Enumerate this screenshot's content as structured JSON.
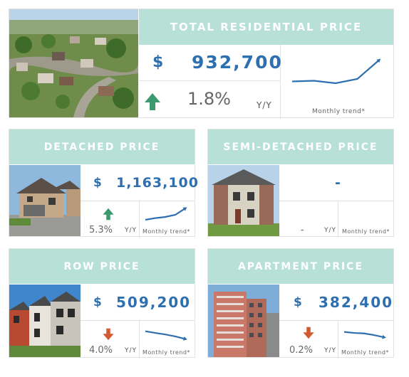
{
  "total": {
    "title": "TOTAL RESIDENTIAL PRICE",
    "currency": "$",
    "price": "932,700",
    "change": "1.8%",
    "direction": "up",
    "yy": "Y/Y",
    "trend_label": "Monthly trend*",
    "trend": [
      0.35,
      0.37,
      0.3,
      0.42,
      0.95
    ]
  },
  "detached": {
    "title": "DETACHED PRICE",
    "currency": "$",
    "price": "1,163,100",
    "change": "5.3%",
    "direction": "up",
    "yy": "Y/Y",
    "trend_label": "Monthly trend*",
    "trend": [
      0.1,
      0.22,
      0.3,
      0.45,
      0.9
    ]
  },
  "semi": {
    "title": "SEMI-DETACHED PRICE",
    "price": "-",
    "change": "-",
    "yy": "Y/Y",
    "trend_label": "Monthly trend*"
  },
  "row": {
    "title": "ROW PRICE",
    "currency": "$",
    "price": "509,200",
    "change": "4.0%",
    "direction": "down",
    "yy": "Y/Y",
    "trend_label": "Monthly trend*",
    "trend": [
      0.85,
      0.72,
      0.6,
      0.45,
      0.25
    ]
  },
  "apartment": {
    "title": "APARTMENT PRICE",
    "currency": "$",
    "price": "382,400",
    "change": "0.2%",
    "direction": "down",
    "yy": "Y/Y",
    "trend_label": "Monthly trend*",
    "trend": [
      0.8,
      0.72,
      0.68,
      0.55,
      0.38
    ]
  },
  "colors": {
    "header_bg": "#b7e1d6",
    "price_blue": "#2e6fb0",
    "up_green": "#3d9a70",
    "down_red": "#d15a33"
  }
}
